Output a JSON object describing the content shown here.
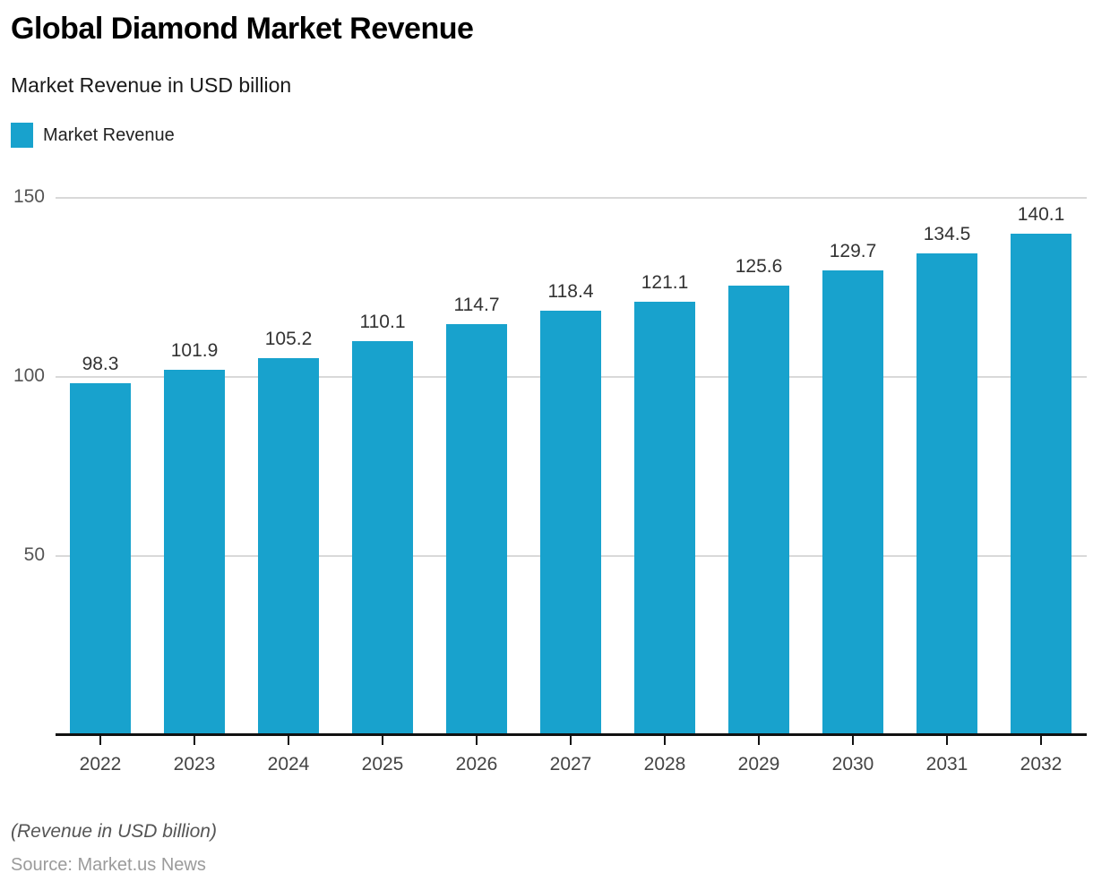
{
  "header": {
    "title": "Global Diamond Market Revenue",
    "subtitle": "Market Revenue in USD billion"
  },
  "legend": {
    "label": "Market Revenue",
    "swatch_color": "#18a2cd"
  },
  "chart_data": {
    "type": "bar",
    "title": "Global Diamond Market Revenue",
    "subtitle": "Market Revenue in USD billion",
    "series_name": "Market Revenue",
    "categories": [
      "2022",
      "2023",
      "2024",
      "2025",
      "2026",
      "2027",
      "2028",
      "2029",
      "2030",
      "2031",
      "2032"
    ],
    "values": [
      98.3,
      101.9,
      105.2,
      110.1,
      114.7,
      118.4,
      121.1,
      125.6,
      129.7,
      134.5,
      140.1
    ],
    "xlabel": "",
    "ylabel": "",
    "ylim": [
      0,
      150
    ],
    "yticks": [
      50,
      100,
      150
    ],
    "bar_color": "#18a2cd",
    "grid": true,
    "gridline_color": "#d9d9d9",
    "axis_color": "#111111",
    "legend_position": "top-left"
  },
  "footer": {
    "note": "(Revenue in USD billion)",
    "source": "Source: Market.us News"
  }
}
